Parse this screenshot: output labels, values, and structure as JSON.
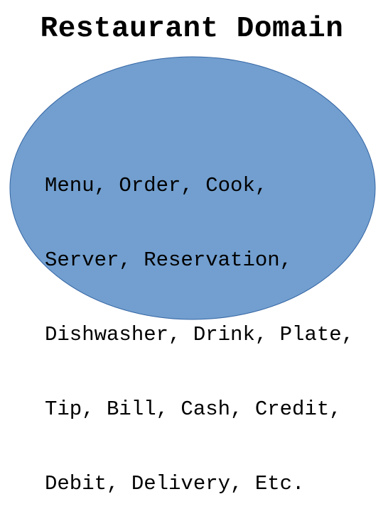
{
  "title": "Restaurant Domain",
  "ellipse": {
    "fill": "#729fcf",
    "stroke": "#3465a4",
    "lines": [
      "Menu, Order, Cook,",
      "Server, Reservation,",
      "Dishwasher, Drink, Plate,",
      "Tip, Bill, Cash, Credit,",
      "Debit, Delivery, Etc."
    ]
  }
}
